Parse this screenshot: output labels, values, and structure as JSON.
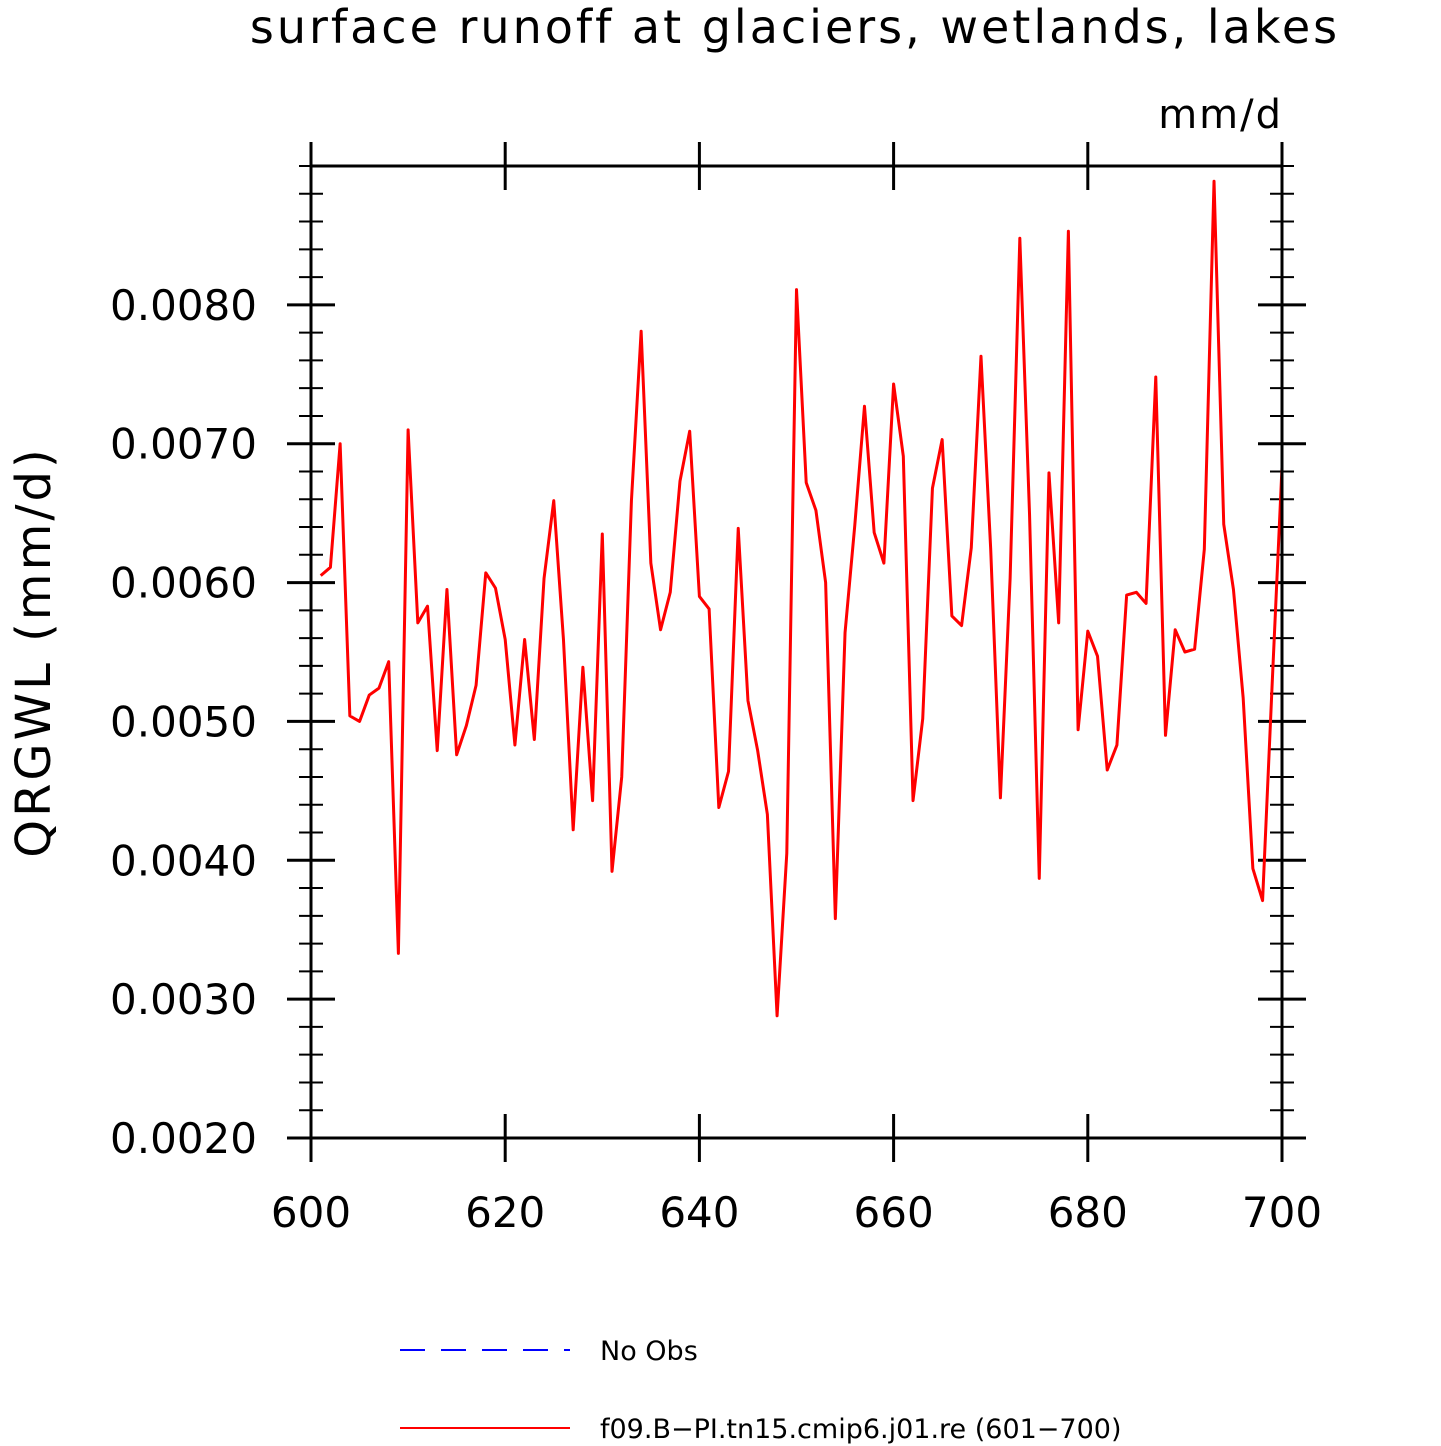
{
  "chart_data": {
    "type": "line",
    "title": "surface runoff at glaciers, wetlands, lakes",
    "units": "mm/d",
    "xlabel": "",
    "ylabel": "QRGWL  (mm/d)",
    "xlim": [
      600,
      700
    ],
    "ylim": [
      0.002,
      0.009
    ],
    "x_ticks": [
      "600",
      "620",
      "640",
      "660",
      "680",
      "700"
    ],
    "y_ticks": [
      "0.0020",
      "0.0030",
      "0.0040",
      "0.0050",
      "0.0060",
      "0.0070",
      "0.0080"
    ],
    "grid": false,
    "legend_position": "bottom",
    "series": [
      {
        "name": "No Obs",
        "color": "#0000ff",
        "dash": "dashed",
        "x": [],
        "values": []
      },
      {
        "name": "f09.B−PI.tn15.cmip6.j01.re (601−700)",
        "color": "#ff0000",
        "dash": "solid",
        "x": [
          601,
          602,
          603,
          604,
          605,
          606,
          607,
          608,
          609,
          610,
          611,
          612,
          613,
          614,
          615,
          616,
          617,
          618,
          619,
          620,
          621,
          622,
          623,
          624,
          625,
          626,
          627,
          628,
          629,
          630,
          631,
          632,
          633,
          634,
          635,
          636,
          637,
          638,
          639,
          640,
          641,
          642,
          643,
          644,
          645,
          646,
          647,
          648,
          649,
          650,
          651,
          652,
          653,
          654,
          655,
          656,
          657,
          658,
          659,
          660,
          661,
          662,
          663,
          664,
          665,
          666,
          667,
          668,
          669,
          670,
          671,
          672,
          673,
          674,
          675,
          676,
          677,
          678,
          679,
          680,
          681,
          682,
          683,
          684,
          685,
          686,
          687,
          688,
          689,
          690,
          691,
          692,
          693,
          694,
          695,
          696,
          697,
          698,
          699,
          700
        ],
        "values": [
          0.00605,
          0.00611,
          0.007,
          0.00504,
          0.005,
          0.00519,
          0.00524,
          0.00543,
          0.00333,
          0.0071,
          0.00571,
          0.00583,
          0.00479,
          0.00595,
          0.00476,
          0.00497,
          0.00526,
          0.00607,
          0.00596,
          0.00559,
          0.00483,
          0.00559,
          0.00487,
          0.00603,
          0.00659,
          0.00559,
          0.00422,
          0.00539,
          0.00443,
          0.00635,
          0.00392,
          0.0046,
          0.00659,
          0.00781,
          0.00614,
          0.00566,
          0.00593,
          0.00673,
          0.00709,
          0.0059,
          0.00581,
          0.00438,
          0.00464,
          0.00639,
          0.00515,
          0.00479,
          0.00433,
          0.00288,
          0.00405,
          0.00811,
          0.00672,
          0.00652,
          0.006,
          0.00358,
          0.00564,
          0.00641,
          0.00727,
          0.00636,
          0.00614,
          0.00743,
          0.00691,
          0.00443,
          0.00502,
          0.00668,
          0.00703,
          0.00576,
          0.00569,
          0.00625,
          0.00763,
          0.00624,
          0.00445,
          0.00603,
          0.00848,
          0.00649,
          0.00387,
          0.00679,
          0.00571,
          0.00853,
          0.00494,
          0.00565,
          0.00547,
          0.00465,
          0.00483,
          0.00591,
          0.00593,
          0.00585,
          0.00748,
          0.0049,
          0.00566,
          0.0055,
          0.00552,
          0.00624,
          0.00889,
          0.00642,
          0.00595,
          0.00517,
          0.00394,
          0.00371,
          0.00529,
          0.00683
        ]
      }
    ]
  }
}
